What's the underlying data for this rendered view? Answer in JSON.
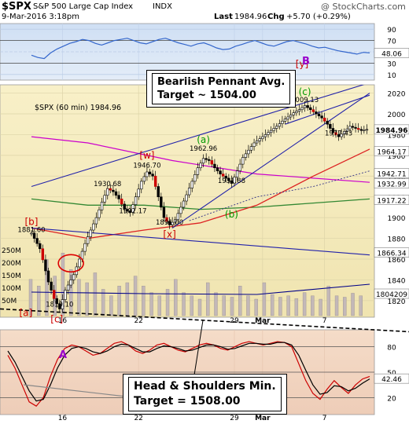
{
  "header": {
    "symbol": "$SPX",
    "name": "S&P 500 Large Cap Index",
    "exchange": "INDX",
    "datetime": "9-Mar-2016 3:18pm",
    "last_label": "Last",
    "last": "1984.96",
    "chg_label": "Chg",
    "chg": "+5.70 (+0.29%)",
    "copyright": "@ StockCharts.com"
  },
  "annotations": {
    "pennant_line1": "Beariish Pennant Avg.",
    "pennant_line2": "Target ~ 1504.00",
    "hs_line1": "Head & Shoulders Min.",
    "hs_line2": "Target = 1508.00"
  },
  "colors": {
    "price_bg": "#f4ecc4",
    "rsi_bg": "#d6e4f5",
    "lower_bg": "#f2d5c4",
    "candle": "#000000",
    "wave_red": "#cc0000",
    "wave_green": "#009900",
    "wave_purple": "#9900cc",
    "channel_blue": "#0000cc"
  },
  "chart_data": [
    {
      "type": "line",
      "panel": "rsi",
      "yticks": [
        10,
        30,
        50,
        70,
        90
      ],
      "value": 48.06,
      "wave_label": "B",
      "series": [
        {
          "values": [
            44,
            40,
            38,
            48,
            55,
            60,
            65,
            68,
            72,
            70,
            65,
            62,
            66,
            70,
            72,
            74,
            70,
            66,
            64,
            68,
            72,
            74,
            70,
            66,
            63,
            60,
            64,
            66,
            62,
            57,
            54,
            55,
            60,
            63,
            67,
            70,
            66,
            62,
            60,
            64,
            68,
            70,
            67,
            64,
            60,
            57,
            58,
            55,
            52,
            50,
            48,
            46,
            49,
            48
          ]
        }
      ]
    },
    {
      "type": "candlestick",
      "panel": "price",
      "title": "$SPX (60 min) 1984.96",
      "xlabel_ticks": [
        {
          "label": "16",
          "index": 11
        },
        {
          "label": "22",
          "index": 38
        },
        {
          "label": "29",
          "index": 72
        },
        {
          "label": "Mar",
          "index": 82
        },
        {
          "label": "7",
          "index": 104
        }
      ],
      "yticks": [
        1820,
        1840,
        1860,
        1880,
        1900,
        1920,
        1940,
        1960,
        1980,
        2000,
        2020
      ],
      "ylim": [
        1804,
        2028
      ],
      "volume_ticks": [
        "250M",
        "200M",
        "150M",
        "100M",
        "50M"
      ],
      "price_value_labels": [
        "1984.96",
        "1964.17",
        "1942.71",
        "1932.99",
        "1917.22",
        "1866.34",
        "1804209"
      ],
      "close_path": [
        {
          "i": 0,
          "v": 1885
        },
        {
          "i": 3,
          "v": 1870
        },
        {
          "i": 6,
          "v": 1838
        },
        {
          "i": 8,
          "v": 1822
        },
        {
          "i": 10,
          "v": 1812
        },
        {
          "i": 12,
          "v": 1830
        },
        {
          "i": 15,
          "v": 1845
        },
        {
          "i": 17,
          "v": 1860
        },
        {
          "i": 19,
          "v": 1875
        },
        {
          "i": 21,
          "v": 1888
        },
        {
          "i": 23,
          "v": 1900
        },
        {
          "i": 25,
          "v": 1915
        },
        {
          "i": 27,
          "v": 1928
        },
        {
          "i": 29,
          "v": 1925
        },
        {
          "i": 31,
          "v": 1918
        },
        {
          "i": 33,
          "v": 1908
        },
        {
          "i": 35,
          "v": 1905
        },
        {
          "i": 37,
          "v": 1920
        },
        {
          "i": 39,
          "v": 1935
        },
        {
          "i": 41,
          "v": 1944
        },
        {
          "i": 43,
          "v": 1940
        },
        {
          "i": 45,
          "v": 1920
        },
        {
          "i": 47,
          "v": 1900
        },
        {
          "i": 49,
          "v": 1893
        },
        {
          "i": 51,
          "v": 1898
        },
        {
          "i": 53,
          "v": 1910
        },
        {
          "i": 55,
          "v": 1922
        },
        {
          "i": 57,
          "v": 1935
        },
        {
          "i": 59,
          "v": 1948
        },
        {
          "i": 61,
          "v": 1957
        },
        {
          "i": 63,
          "v": 1955
        },
        {
          "i": 65,
          "v": 1948
        },
        {
          "i": 67,
          "v": 1942
        },
        {
          "i": 69,
          "v": 1938
        },
        {
          "i": 71,
          "v": 1933
        },
        {
          "i": 73,
          "v": 1945
        },
        {
          "i": 75,
          "v": 1958
        },
        {
          "i": 77,
          "v": 1965
        },
        {
          "i": 79,
          "v": 1972
        },
        {
          "i": 81,
          "v": 1976
        },
        {
          "i": 83,
          "v": 1980
        },
        {
          "i": 85,
          "v": 1984
        },
        {
          "i": 87,
          "v": 1988
        },
        {
          "i": 89,
          "v": 1993
        },
        {
          "i": 91,
          "v": 1997
        },
        {
          "i": 93,
          "v": 2001
        },
        {
          "i": 95,
          "v": 2004
        },
        {
          "i": 97,
          "v": 2008
        },
        {
          "i": 99,
          "v": 2004
        },
        {
          "i": 101,
          "v": 2000
        },
        {
          "i": 103,
          "v": 1996
        },
        {
          "i": 105,
          "v": 1990
        },
        {
          "i": 107,
          "v": 1982
        },
        {
          "i": 109,
          "v": 1978
        },
        {
          "i": 111,
          "v": 1983
        },
        {
          "i": 113,
          "v": 1988
        },
        {
          "i": 115,
          "v": 1986
        },
        {
          "i": 117,
          "v": 1984
        },
        {
          "i": 119,
          "v": 1985
        }
      ],
      "volume_heights": [
        0.55,
        0.45,
        0.85,
        0.6,
        0.95,
        0.7,
        0.55,
        0.5,
        0.65,
        0.4,
        0.3,
        0.45,
        0.5,
        0.6,
        0.45,
        0.35,
        0.3,
        0.4,
        0.55,
        0.35,
        0.3,
        0.25,
        0.5,
        0.35,
        0.3,
        0.28,
        0.45,
        0.3,
        0.25,
        0.5,
        0.32,
        0.28,
        0.3,
        0.26,
        0.35,
        0.3,
        0.25,
        0.45,
        0.3,
        0.28,
        0.34,
        0.3
      ],
      "price_labels": [
        {
          "label": "1881.60",
          "i": 0,
          "v": 1884
        },
        {
          "label": "1810.10",
          "i": 10,
          "v": 1812
        },
        {
          "label": "1930.68",
          "i": 27,
          "v": 1928
        },
        {
          "label": "1902.17",
          "i": 36,
          "v": 1902
        },
        {
          "label": "1946.70",
          "i": 41,
          "v": 1946
        },
        {
          "label": "1891.00",
          "i": 49,
          "v": 1891
        },
        {
          "label": "1962.96",
          "i": 61,
          "v": 1962
        },
        {
          "label": "1931.88",
          "i": 71,
          "v": 1931
        },
        {
          "label": "2009.13",
          "i": 97,
          "v": 2009
        },
        {
          "label": "1977.43",
          "i": 109,
          "v": 1977
        }
      ],
      "wave_labels": [
        {
          "label": "[a]",
          "color": "red",
          "i": -2,
          "v": 1805
        },
        {
          "label": "[b]",
          "color": "red",
          "i": 0,
          "v": 1893
        },
        {
          "label": "[c]",
          "color": "red",
          "i": 9,
          "v": 1799
        },
        {
          "label": "[w]",
          "color": "red",
          "i": 41,
          "v": 1957
        },
        {
          "label": "[x]",
          "color": "red",
          "i": 49,
          "v": 1881
        },
        {
          "label": "[y]",
          "color": "red",
          "i": 96,
          "v": 2045
        },
        {
          "label": "(a)",
          "color": "green",
          "i": 61,
          "v": 1972
        },
        {
          "label": "(b)",
          "color": "green",
          "i": 71,
          "v": 1900
        },
        {
          "label": "(c)",
          "color": "green",
          "i": 97,
          "v": 2018
        }
      ]
    },
    {
      "type": "line",
      "panel": "lower",
      "yticks": [
        20,
        50,
        80
      ],
      "value": 42.46,
      "wave_label": "A",
      "series": [
        {
          "values": [
            70,
            55,
            35,
            15,
            10,
            20,
            45,
            65,
            78,
            82,
            80,
            75,
            70,
            72,
            78,
            84,
            86,
            82,
            75,
            72,
            76,
            82,
            84,
            80,
            76,
            74,
            78,
            82,
            84,
            82,
            78,
            76,
            80,
            84,
            86,
            84,
            82,
            84,
            86,
            85,
            80,
            60,
            40,
            25,
            18,
            30,
            40,
            32,
            25,
            35,
            42,
            45
          ]
        },
        {
          "values": [
            75,
            62,
            45,
            28,
            16,
            18,
            35,
            55,
            70,
            78,
            80,
            78,
            74,
            72,
            75,
            80,
            83,
            82,
            78,
            74,
            74,
            78,
            81,
            80,
            78,
            75,
            76,
            79,
            82,
            82,
            80,
            77,
            78,
            81,
            84,
            84,
            83,
            83,
            85,
            85,
            82,
            70,
            52,
            35,
            24,
            26,
            34,
            33,
            28,
            31,
            37,
            42
          ]
        }
      ]
    }
  ]
}
